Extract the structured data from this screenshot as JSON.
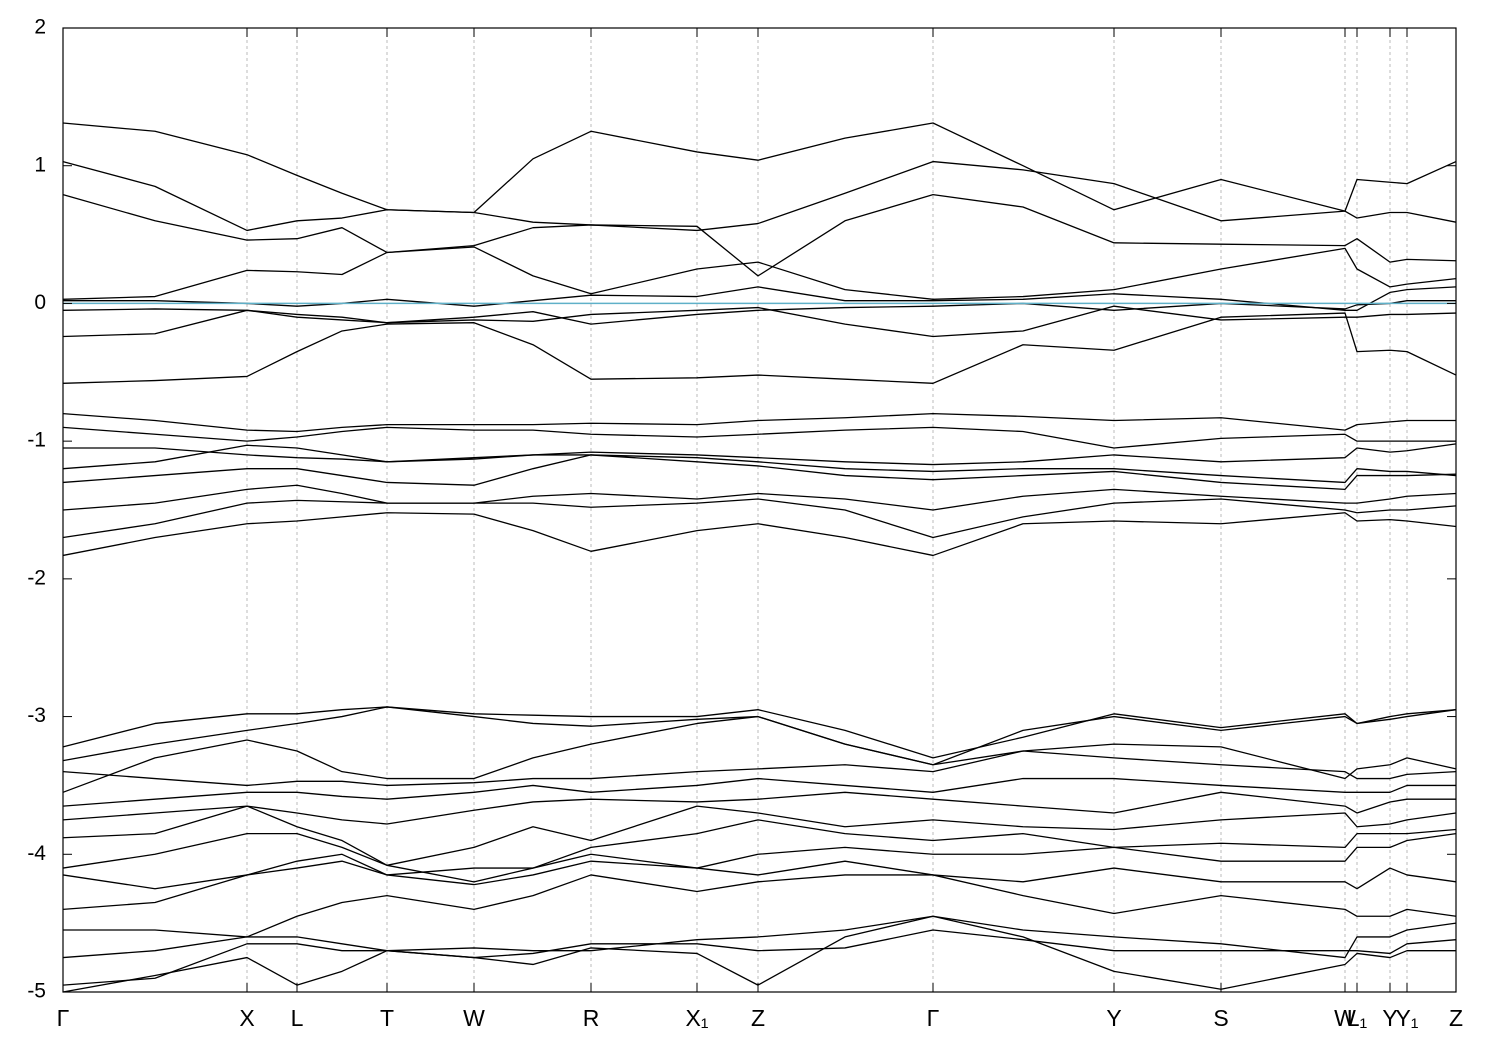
{
  "chart_data": {
    "type": "line",
    "color": "#000000",
    "fermi_level": {
      "value": 0,
      "color": "#5fb0c8"
    },
    "xlim": [
      0,
      1393
    ],
    "xticks": [
      {
        "value": 0,
        "label": "Γ"
      },
      {
        "value": 184,
        "label": "X"
      },
      {
        "value": 234,
        "label": "L"
      },
      {
        "value": 324,
        "label": "T"
      },
      {
        "value": 411,
        "label": "W"
      },
      {
        "value": 528,
        "label": "R"
      },
      {
        "value": 634,
        "label": "X₁"
      },
      {
        "value": 695,
        "label": "Z"
      },
      {
        "value": 870,
        "label": "Γ"
      },
      {
        "value": 1051,
        "label": "Y"
      },
      {
        "value": 1158,
        "label": "S"
      },
      {
        "value": 1282,
        "label": "W"
      },
      {
        "value": 1294,
        "label": "L₁"
      },
      {
        "value": 1327,
        "label": "Y"
      },
      {
        "value": 1344,
        "label": "Y₁"
      },
      {
        "value": 1393,
        "label": "Z"
      }
    ],
    "ylim": [
      -5,
      2
    ],
    "yticks": [
      -5,
      -4,
      -3,
      -2,
      -1,
      0,
      1,
      2
    ],
    "grid": true,
    "x": [
      0,
      92,
      184,
      234,
      279,
      324,
      411,
      470,
      528,
      634,
      695,
      782,
      870,
      960,
      1051,
      1158,
      1282,
      1294,
      1327,
      1344,
      1393
    ],
    "series": [
      {
        "values": [
          1.31,
          1.25,
          1.08,
          0.93,
          0.8,
          0.68,
          0.66,
          1.05,
          1.25,
          1.1,
          1.04,
          1.2,
          1.31,
          1.0,
          0.68,
          0.9,
          0.67,
          0.9,
          0.88,
          0.87,
          1.03
        ]
      },
      {
        "values": [
          1.03,
          0.85,
          0.53,
          0.6,
          0.62,
          0.68,
          0.66,
          0.59,
          0.57,
          0.53,
          0.58,
          0.8,
          1.03,
          0.97,
          0.87,
          0.6,
          0.67,
          0.62,
          0.66,
          0.66,
          0.59
        ]
      },
      {
        "values": [
          0.79,
          0.6,
          0.46,
          0.47,
          0.55,
          0.37,
          0.42,
          0.55,
          0.57,
          0.56,
          0.2,
          0.6,
          0.79,
          0.7,
          0.44,
          0.43,
          0.42,
          0.47,
          0.3,
          0.32,
          0.31
        ]
      },
      {
        "values": [
          0.03,
          0.05,
          0.24,
          0.23,
          0.21,
          0.37,
          0.41,
          0.2,
          0.07,
          0.25,
          0.3,
          0.1,
          0.03,
          0.05,
          0.1,
          0.25,
          0.4,
          0.25,
          0.12,
          0.14,
          0.18
        ]
      },
      {
        "values": [
          0.02,
          0.02,
          0.0,
          -0.02,
          0.0,
          0.03,
          -0.02,
          0.02,
          0.06,
          0.05,
          0.12,
          0.02,
          0.02,
          0.03,
          0.07,
          0.03,
          -0.05,
          -0.05,
          0.08,
          0.1,
          0.12
        ]
      },
      {
        "values": [
          -0.05,
          -0.04,
          -0.05,
          -0.08,
          -0.1,
          -0.14,
          -0.1,
          -0.06,
          -0.15,
          -0.08,
          -0.05,
          -0.03,
          -0.02,
          0.0,
          -0.05,
          0.0,
          -0.04,
          -0.01,
          0.0,
          0.02,
          0.02
        ]
      },
      {
        "values": [
          -0.24,
          -0.22,
          -0.05,
          -0.1,
          -0.12,
          -0.14,
          -0.12,
          -0.13,
          -0.08,
          -0.05,
          -0.03,
          -0.15,
          -0.24,
          -0.2,
          -0.02,
          -0.12,
          -0.1,
          -0.1,
          -0.08,
          -0.08,
          -0.07
        ]
      },
      {
        "values": [
          -0.58,
          -0.56,
          -0.53,
          -0.35,
          -0.2,
          -0.15,
          -0.14,
          -0.3,
          -0.55,
          -0.54,
          -0.52,
          -0.55,
          -0.58,
          -0.3,
          -0.34,
          -0.1,
          -0.07,
          -0.35,
          -0.34,
          -0.35,
          -0.52
        ]
      },
      {
        "values": [
          -0.8,
          -0.85,
          -0.92,
          -0.93,
          -0.9,
          -0.88,
          -0.88,
          -0.88,
          -0.87,
          -0.88,
          -0.85,
          -0.83,
          -0.8,
          -0.82,
          -0.85,
          -0.83,
          -0.92,
          -0.88,
          -0.86,
          -0.85,
          -0.85
        ]
      },
      {
        "values": [
          -0.9,
          -0.95,
          -1.0,
          -0.97,
          -0.93,
          -0.9,
          -0.92,
          -0.92,
          -0.95,
          -0.97,
          -0.95,
          -0.92,
          -0.9,
          -0.93,
          -1.05,
          -0.98,
          -0.95,
          -1.0,
          -1.0,
          -1.0,
          -1.0
        ]
      },
      {
        "values": [
          -1.05,
          -1.05,
          -1.1,
          -1.12,
          -1.13,
          -1.15,
          -1.12,
          -1.1,
          -1.08,
          -1.1,
          -1.12,
          -1.15,
          -1.17,
          -1.15,
          -1.1,
          -1.15,
          -1.12,
          -1.05,
          -1.08,
          -1.07,
          -1.02
        ]
      },
      {
        "values": [
          -1.2,
          -1.15,
          -1.03,
          -1.05,
          -1.1,
          -1.15,
          -1.13,
          -1.1,
          -1.1,
          -1.12,
          -1.15,
          -1.2,
          -1.22,
          -1.2,
          -1.2,
          -1.25,
          -1.3,
          -1.2,
          -1.22,
          -1.22,
          -1.25
        ]
      },
      {
        "values": [
          -1.3,
          -1.25,
          -1.2,
          -1.2,
          -1.25,
          -1.3,
          -1.32,
          -1.2,
          -1.1,
          -1.15,
          -1.18,
          -1.25,
          -1.28,
          -1.25,
          -1.22,
          -1.3,
          -1.35,
          -1.25,
          -1.25,
          -1.25,
          -1.24
        ]
      },
      {
        "values": [
          -1.5,
          -1.45,
          -1.35,
          -1.32,
          -1.38,
          -1.45,
          -1.45,
          -1.4,
          -1.38,
          -1.42,
          -1.38,
          -1.42,
          -1.5,
          -1.4,
          -1.35,
          -1.4,
          -1.45,
          -1.45,
          -1.42,
          -1.4,
          -1.38
        ]
      },
      {
        "values": [
          -1.7,
          -1.6,
          -1.45,
          -1.43,
          -1.44,
          -1.45,
          -1.45,
          -1.45,
          -1.48,
          -1.45,
          -1.42,
          -1.5,
          -1.7,
          -1.55,
          -1.45,
          -1.42,
          -1.5,
          -1.52,
          -1.5,
          -1.5,
          -1.47
        ]
      },
      {
        "values": [
          -1.83,
          -1.7,
          -1.6,
          -1.58,
          -1.55,
          -1.52,
          -1.53,
          -1.65,
          -1.8,
          -1.65,
          -1.6,
          -1.7,
          -1.83,
          -1.6,
          -1.58,
          -1.6,
          -1.52,
          -1.58,
          -1.57,
          -1.58,
          -1.62
        ]
      },
      {
        "values": [
          -3.22,
          -3.05,
          -2.98,
          -2.98,
          -2.95,
          -2.93,
          -2.98,
          -2.99,
          -3.0,
          -3.0,
          -2.95,
          -3.1,
          -3.3,
          -3.15,
          -2.98,
          -3.08,
          -2.98,
          -3.05,
          -3.0,
          -2.98,
          -2.95
        ]
      },
      {
        "values": [
          -3.32,
          -3.2,
          -3.1,
          -3.05,
          -3.0,
          -2.93,
          -3.0,
          -3.05,
          -3.07,
          -3.02,
          -3.0,
          -3.2,
          -3.35,
          -3.1,
          -3.0,
          -3.1,
          -3.0,
          -3.05,
          -3.02,
          -3.0,
          -2.95
        ]
      },
      {
        "values": [
          -3.55,
          -3.3,
          -3.17,
          -3.25,
          -3.4,
          -3.45,
          -3.45,
          -3.3,
          -3.2,
          -3.05,
          -3.0,
          -3.2,
          -3.35,
          -3.25,
          -3.2,
          -3.22,
          -3.45,
          -3.38,
          -3.35,
          -3.3,
          -3.38
        ]
      },
      {
        "values": [
          -3.4,
          -3.45,
          -3.5,
          -3.47,
          -3.47,
          -3.5,
          -3.48,
          -3.45,
          -3.45,
          -3.4,
          -3.38,
          -3.35,
          -3.4,
          -3.25,
          -3.3,
          -3.35,
          -3.4,
          -3.45,
          -3.45,
          -3.42,
          -3.4
        ]
      },
      {
        "values": [
          -3.65,
          -3.6,
          -3.55,
          -3.55,
          -3.58,
          -3.6,
          -3.55,
          -3.5,
          -3.55,
          -3.5,
          -3.45,
          -3.5,
          -3.55,
          -3.45,
          -3.45,
          -3.5,
          -3.55,
          -3.55,
          -3.55,
          -3.5,
          -3.5
        ]
      },
      {
        "values": [
          -3.75,
          -3.7,
          -3.65,
          -3.7,
          -3.75,
          -3.78,
          -3.68,
          -3.62,
          -3.6,
          -3.62,
          -3.6,
          -3.55,
          -3.6,
          -3.65,
          -3.7,
          -3.55,
          -3.65,
          -3.7,
          -3.62,
          -3.6,
          -3.6
        ]
      },
      {
        "values": [
          -3.88,
          -3.85,
          -3.65,
          -3.8,
          -3.9,
          -4.08,
          -3.95,
          -3.8,
          -3.9,
          -3.65,
          -3.7,
          -3.8,
          -3.75,
          -3.8,
          -3.82,
          -3.75,
          -3.7,
          -3.8,
          -3.78,
          -3.75,
          -3.7
        ]
      },
      {
        "values": [
          -4.1,
          -4.0,
          -3.85,
          -3.85,
          -3.95,
          -4.08,
          -4.2,
          -4.1,
          -3.95,
          -3.85,
          -3.75,
          -3.85,
          -3.9,
          -3.85,
          -3.95,
          -3.92,
          -3.95,
          -3.85,
          -3.85,
          -3.85,
          -3.82
        ]
      },
      {
        "values": [
          -4.15,
          -4.25,
          -4.15,
          -4.1,
          -4.05,
          -4.15,
          -4.22,
          -4.15,
          -4.05,
          -4.1,
          -4.0,
          -3.95,
          -4.0,
          -4.0,
          -3.95,
          -4.05,
          -4.05,
          -3.95,
          -3.95,
          -3.9,
          -3.85
        ]
      },
      {
        "values": [
          -4.4,
          -4.35,
          -4.15,
          -4.05,
          -4.0,
          -4.15,
          -4.1,
          -4.1,
          -4.0,
          -4.1,
          -4.15,
          -4.05,
          -4.15,
          -4.2,
          -4.1,
          -4.2,
          -4.2,
          -4.25,
          -4.1,
          -4.15,
          -4.2
        ]
      },
      {
        "values": [
          -4.55,
          -4.55,
          -4.6,
          -4.45,
          -4.35,
          -4.3,
          -4.4,
          -4.3,
          -4.15,
          -4.27,
          -4.2,
          -4.15,
          -4.15,
          -4.3,
          -4.43,
          -4.3,
          -4.4,
          -4.45,
          -4.45,
          -4.4,
          -4.45
        ]
      },
      {
        "values": [
          -4.75,
          -4.7,
          -4.6,
          -4.6,
          -4.65,
          -4.7,
          -4.68,
          -4.7,
          -4.7,
          -4.62,
          -4.6,
          -4.55,
          -4.45,
          -4.55,
          -4.6,
          -4.65,
          -4.75,
          -4.6,
          -4.6,
          -4.55,
          -4.5
        ]
      },
      {
        "values": [
          -4.95,
          -4.9,
          -4.65,
          -4.65,
          -4.7,
          -4.7,
          -4.75,
          -4.72,
          -4.65,
          -4.65,
          -4.7,
          -4.68,
          -4.55,
          -4.62,
          -4.7,
          -4.7,
          -4.7,
          -4.7,
          -4.72,
          -4.65,
          -4.62
        ]
      },
      {
        "values": [
          -5.0,
          -4.88,
          -4.75,
          -4.95,
          -4.85,
          -4.7,
          -4.75,
          -4.8,
          -4.68,
          -4.72,
          -4.95,
          -4.6,
          -4.45,
          -4.6,
          -4.85,
          -4.98,
          -4.8,
          -4.72,
          -4.75,
          -4.7,
          -4.7
        ]
      }
    ]
  }
}
